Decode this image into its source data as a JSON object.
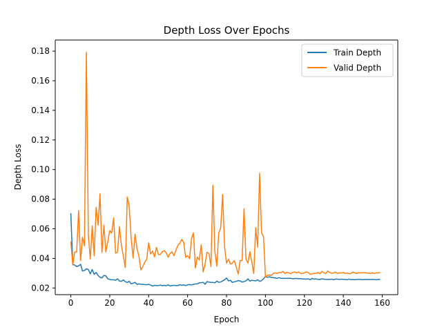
{
  "chart_data": {
    "type": "line",
    "title": "Depth Loss Over Epochs",
    "xlabel": "Epoch",
    "ylabel": "Depth Loss",
    "xlim": [
      -8,
      168
    ],
    "ylim": [
      0.0155,
      0.1875
    ],
    "xticks": [
      0,
      20,
      40,
      60,
      80,
      100,
      120,
      140,
      160
    ],
    "xtick_labels": [
      "0",
      "20",
      "40",
      "60",
      "80",
      "100",
      "120",
      "140",
      "160"
    ],
    "yticks": [
      0.02,
      0.04,
      0.06,
      0.08,
      0.1,
      0.12,
      0.14,
      0.16,
      0.18
    ],
    "ytick_labels": [
      "0.02",
      "0.04",
      "0.06",
      "0.08",
      "0.10",
      "0.12",
      "0.14",
      "0.16",
      "0.18"
    ],
    "grid": false,
    "legend_position": "top-right",
    "series": [
      {
        "name": "Train Depth",
        "color": "#1f77b4",
        "x": [
          0,
          1,
          2,
          3,
          4,
          5,
          6,
          7,
          8,
          9,
          10,
          11,
          12,
          13,
          14,
          15,
          16,
          17,
          18,
          19,
          20,
          21,
          22,
          23,
          24,
          25,
          26,
          27,
          28,
          29,
          30,
          31,
          32,
          33,
          34,
          35,
          36,
          37,
          38,
          39,
          40,
          41,
          42,
          43,
          44,
          45,
          46,
          47,
          48,
          49,
          50,
          51,
          52,
          53,
          54,
          55,
          56,
          57,
          58,
          59,
          60,
          61,
          62,
          63,
          64,
          65,
          66,
          67,
          68,
          69,
          70,
          71,
          72,
          73,
          74,
          75,
          76,
          77,
          78,
          79,
          80,
          81,
          82,
          83,
          84,
          85,
          86,
          87,
          88,
          89,
          90,
          91,
          92,
          93,
          94,
          95,
          96,
          97,
          98,
          99,
          100,
          101,
          102,
          103,
          104,
          105,
          106,
          107,
          108,
          109,
          110,
          111,
          112,
          113,
          114,
          115,
          116,
          117,
          118,
          119,
          120,
          121,
          122,
          123,
          124,
          125,
          126,
          127,
          128,
          129,
          130,
          131,
          132,
          133,
          134,
          135,
          136,
          137,
          138,
          139,
          140,
          141,
          142,
          143,
          144,
          145,
          146,
          147,
          148,
          149,
          150,
          151,
          152,
          153,
          154,
          155,
          156,
          157,
          158,
          159
        ],
        "values": [
          0.0705,
          0.036,
          0.0355,
          0.0345,
          0.035,
          0.036,
          0.0315,
          0.0318,
          0.033,
          0.0325,
          0.0295,
          0.0325,
          0.0292,
          0.0305,
          0.0285,
          0.0272,
          0.0268,
          0.0285,
          0.0282,
          0.0262,
          0.0258,
          0.0255,
          0.0256,
          0.0252,
          0.0262,
          0.0247,
          0.0245,
          0.0255,
          0.0243,
          0.0237,
          0.0245,
          0.0228,
          0.0233,
          0.0238,
          0.0225,
          0.0228,
          0.0225,
          0.0225,
          0.0223,
          0.0222,
          0.0225,
          0.022,
          0.0213,
          0.0218,
          0.0217,
          0.0216,
          0.022,
          0.0216,
          0.0218,
          0.0215,
          0.0222,
          0.0214,
          0.0217,
          0.0218,
          0.0217,
          0.0216,
          0.0223,
          0.0218,
          0.0222,
          0.0216,
          0.0222,
          0.0223,
          0.0221,
          0.0225,
          0.0227,
          0.0228,
          0.0235,
          0.0236,
          0.0238,
          0.0225,
          0.0243,
          0.024,
          0.0238,
          0.0238,
          0.0235,
          0.0247,
          0.0238,
          0.0241,
          0.0248,
          0.0255,
          0.0268,
          0.0248,
          0.0252,
          0.0238,
          0.0242,
          0.0245,
          0.025,
          0.0248,
          0.024,
          0.0244,
          0.0248,
          0.0262,
          0.0246,
          0.0252,
          0.025,
          0.0248,
          0.0256,
          0.0245,
          0.025,
          0.0262,
          0.0278,
          0.0272,
          0.0276,
          0.0272,
          0.027,
          0.0268,
          0.0265,
          0.027,
          0.0265,
          0.0266,
          0.0265,
          0.0265,
          0.0266,
          0.0266,
          0.0262,
          0.0264,
          0.0265,
          0.0262,
          0.0264,
          0.0261,
          0.0261,
          0.026,
          0.0262,
          0.0256,
          0.0265,
          0.026,
          0.0262,
          0.0258,
          0.0258,
          0.0262,
          0.026,
          0.0258,
          0.0258,
          0.0258,
          0.026,
          0.0256,
          0.026,
          0.026,
          0.0258,
          0.026,
          0.0258,
          0.0258,
          0.0256,
          0.026,
          0.0256,
          0.0258,
          0.0256,
          0.0258,
          0.0258,
          0.0258,
          0.0256,
          0.0258,
          0.0257,
          0.0258,
          0.0257,
          0.0258,
          0.0257,
          0.0256,
          0.0258,
          0.0258
        ]
      },
      {
        "name": "Valid Depth",
        "color": "#ff7f0e",
        "x": [
          0,
          1,
          2,
          3,
          4,
          5,
          6,
          7,
          8,
          9,
          10,
          11,
          12,
          13,
          14,
          15,
          16,
          17,
          18,
          19,
          20,
          21,
          22,
          23,
          24,
          25,
          26,
          27,
          28,
          29,
          30,
          31,
          32,
          33,
          34,
          35,
          36,
          37,
          38,
          39,
          40,
          41,
          42,
          43,
          44,
          45,
          46,
          47,
          48,
          49,
          50,
          51,
          52,
          53,
          54,
          55,
          56,
          57,
          58,
          59,
          60,
          61,
          62,
          63,
          64,
          65,
          66,
          67,
          68,
          69,
          70,
          71,
          72,
          73,
          74,
          75,
          76,
          77,
          78,
          79,
          80,
          81,
          82,
          83,
          84,
          85,
          86,
          87,
          88,
          89,
          90,
          91,
          92,
          93,
          94,
          95,
          96,
          97,
          98,
          99,
          100,
          101,
          102,
          103,
          104,
          105,
          106,
          107,
          108,
          109,
          110,
          111,
          112,
          113,
          114,
          115,
          116,
          117,
          118,
          119,
          120,
          121,
          122,
          123,
          124,
          125,
          126,
          127,
          128,
          129,
          130,
          131,
          132,
          133,
          134,
          135,
          136,
          137,
          138,
          139,
          140,
          141,
          142,
          143,
          144,
          145,
          146,
          147,
          148,
          149,
          150,
          151,
          152,
          153,
          154,
          155,
          156,
          157,
          158,
          159
        ],
        "values": [
          0.0515,
          0.0355,
          0.0443,
          0.0443,
          0.0722,
          0.0385,
          0.0543,
          0.0485,
          0.1792,
          0.0558,
          0.0395,
          0.062,
          0.0418,
          0.0745,
          0.0625,
          0.0836,
          0.044,
          0.0625,
          0.0443,
          0.0515,
          0.0588,
          0.0572,
          0.0675,
          0.0435,
          0.0443,
          0.0615,
          0.0485,
          0.0418,
          0.0338,
          0.0815,
          0.0755,
          0.0535,
          0.0402,
          0.0565,
          0.0465,
          0.0415,
          0.0322,
          0.0345,
          0.0375,
          0.0395,
          0.0505,
          0.043,
          0.045,
          0.041,
          0.0475,
          0.0425,
          0.0428,
          0.0445,
          0.0452,
          0.0438,
          0.0408,
          0.0432,
          0.0445,
          0.0418,
          0.0455,
          0.0488,
          0.0502,
          0.0528,
          0.0508,
          0.0408,
          0.0418,
          0.0398,
          0.0532,
          0.0572,
          0.0335,
          0.0408,
          0.039,
          0.0492,
          0.0308,
          0.0362,
          0.0442,
          0.0432,
          0.0345,
          0.0895,
          0.0448,
          0.0348,
          0.0572,
          0.0605,
          0.0832,
          0.0478,
          0.0368,
          0.0395,
          0.0362,
          0.0368,
          0.0385,
          0.0342,
          0.0295,
          0.0385,
          0.0385,
          0.0735,
          0.0395,
          0.0368,
          0.0445,
          0.0375,
          0.0298,
          0.0608,
          0.0475,
          0.0975,
          0.0572,
          0.0548,
          0.0275,
          0.0285,
          0.0288,
          0.0285,
          0.0298,
          0.0302,
          0.0298,
          0.0305,
          0.0302,
          0.0312,
          0.0298,
          0.0306,
          0.0302,
          0.0296,
          0.0305,
          0.0308,
          0.0302,
          0.0308,
          0.0299,
          0.0298,
          0.0302,
          0.0308,
          0.0305,
          0.0292,
          0.0295,
          0.0299,
          0.0298,
          0.0306,
          0.0296,
          0.0312,
          0.0302,
          0.0298,
          0.0315,
          0.0305,
          0.0299,
          0.0302,
          0.0308,
          0.0298,
          0.0303,
          0.0302,
          0.0305,
          0.0298,
          0.0302,
          0.0296,
          0.0298,
          0.0308,
          0.0302,
          0.0299,
          0.0303,
          0.0302,
          0.0303,
          0.0303,
          0.0302,
          0.03,
          0.0298,
          0.0303,
          0.0298,
          0.0302,
          0.0302,
          0.0305
        ]
      }
    ]
  }
}
